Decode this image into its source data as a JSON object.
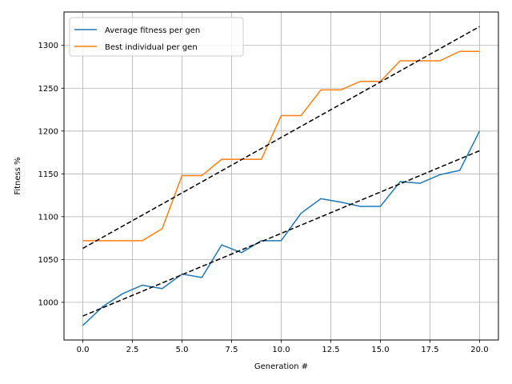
{
  "chart_data": {
    "type": "line",
    "xlabel": "Generation #",
    "ylabel": "Fitness %",
    "xlim": [
      -0.95,
      20.95
    ],
    "ylim": [
      956,
      1339
    ],
    "xticks": [
      0.0,
      2.5,
      5.0,
      7.5,
      10.0,
      12.5,
      15.0,
      17.5,
      20.0
    ],
    "xtick_labels": [
      "0.0",
      "2.5",
      "5.0",
      "7.5",
      "10.0",
      "12.5",
      "15.0",
      "17.5",
      "20.0"
    ],
    "yticks": [
      1000,
      1050,
      1100,
      1150,
      1200,
      1250,
      1300
    ],
    "ytick_labels": [
      "1000",
      "1050",
      "1100",
      "1150",
      "1200",
      "1250",
      "1300"
    ],
    "grid": true,
    "legend_position": "top-left",
    "x": [
      0,
      1,
      2,
      3,
      4,
      5,
      6,
      7,
      8,
      9,
      10,
      11,
      12,
      13,
      14,
      15,
      16,
      17,
      18,
      19,
      20
    ],
    "series": [
      {
        "name": "Average fitness per gen",
        "color": "#1f77b4",
        "values": [
          973,
          995,
          1010,
          1020,
          1016,
          1033,
          1029,
          1067,
          1058,
          1072,
          1072,
          1104,
          1121,
          1117,
          1112,
          1112,
          1141,
          1139,
          1149,
          1154,
          1200
        ]
      },
      {
        "name": "Best individual per gen",
        "color": "#ff7f0e",
        "values": [
          1072,
          1072,
          1072,
          1072,
          1086,
          1148,
          1148,
          1167,
          1167,
          1167,
          1218,
          1218,
          1248,
          1248,
          1258,
          1258,
          1282,
          1282,
          1282,
          1293,
          1293
        ]
      }
    ],
    "trend_lines": [
      {
        "color": "#000000",
        "style": "dashed",
        "start": [
          0,
          984
        ],
        "end": [
          20,
          1177
        ]
      },
      {
        "color": "#000000",
        "style": "dashed",
        "start": [
          0,
          1063
        ],
        "end": [
          20,
          1322
        ]
      }
    ]
  }
}
